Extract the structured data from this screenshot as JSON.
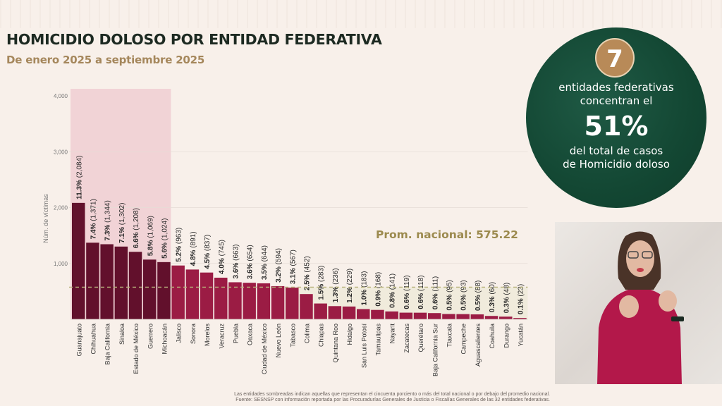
{
  "header": {
    "title": "HOMICIDIO DOLOSO POR ENTIDAD FEDERATIVA",
    "subtitle": "De enero 2025 a septiembre 2025"
  },
  "highlight": {
    "count": "7",
    "line1a": "entidades federativas",
    "line1b": "concentran el",
    "percent": "51%",
    "line2a": "del total de casos",
    "line2b": "de Homicidio doloso"
  },
  "average_label": "Prom. nacional: 575.22",
  "footnote": {
    "line1": "Las entidades sombreadas indican aquellas que representan el cincuenta porciento o más del total nacional o por debajo del promedio nacional.",
    "line2": "Fuente: SESNSP con información reportada por las Procuradurías Generales de Justicia o Fiscalías Generales de las 32 entidades federativas."
  },
  "interpreter": {
    "label": "Intérprete de lengua de señas"
  },
  "colors": {
    "top_bar": "#62102c",
    "other_bar": "#9b1c44",
    "top_region": "#f1d3d6",
    "below_avg_region": "#f0ebdc",
    "average_line": "#b7b27a"
  },
  "chart_data": {
    "type": "bar",
    "title": "HOMICIDIO DOLOSO POR ENTIDAD FEDERATIVA",
    "subtitle": "De enero 2025 a septiembre 2025",
    "xlabel": "",
    "ylabel": "Núm. de víctimas",
    "ylim": [
      0,
      4000
    ],
    "yticks": [
      1000,
      2000,
      3000,
      4000
    ],
    "ytick_labels": [
      "1,000",
      "2,000",
      "3,000",
      "4,000"
    ],
    "average": 575.22,
    "average_label": "Prom. nacional: 575.22",
    "top_group_count": 7,
    "categories": [
      "Guanajuato",
      "Chihuahua",
      "Baja California",
      "Sinaloa",
      "Estado de México",
      "Guerrero",
      "Michoacán",
      "Jalisco",
      "Sonora",
      "Morelos",
      "Veracruz",
      "Puebla",
      "Oaxaca",
      "Ciudad de México",
      "Nuevo León",
      "Tabasco",
      "Colima",
      "Chiapas",
      "Quintana Roo",
      "Hidalgo",
      "San Luis Potosí",
      "Tamaulipas",
      "Nayarit",
      "Zacatecas",
      "Querétaro",
      "Baja California Sur",
      "Tlaxcala",
      "Campeche",
      "Aguascalientes",
      "Coahuila",
      "Durango",
      "Yucatán"
    ],
    "values": [
      2084,
      1371,
      1344,
      1302,
      1208,
      1069,
      1024,
      963,
      891,
      837,
      745,
      663,
      654,
      644,
      594,
      567,
      452,
      283,
      236,
      229,
      183,
      168,
      141,
      119,
      118,
      111,
      95,
      93,
      88,
      60,
      48,
      23
    ],
    "percents": [
      "11.3%",
      "7.4%",
      "7.3%",
      "7.1%",
      "6.6%",
      "5.8%",
      "5.6%",
      "5.2%",
      "4.8%",
      "4.5%",
      "4.0%",
      "3.6%",
      "3.6%",
      "3.5%",
      "3.2%",
      "3.1%",
      "2.5%",
      "1.5%",
      "1.3%",
      "1.2%",
      "1.0%",
      "0.9%",
      "0.8%",
      "0.6%",
      "0.6%",
      "0.6%",
      "0.5%",
      "0.5%",
      "0.5%",
      "0.3%",
      "0.3%",
      "0.1%"
    ],
    "value_labels": [
      "(2,084)",
      "(1,371)",
      "(1,344)",
      "(1,302)",
      "(1,208)",
      "(1,069)",
      "(1,024)",
      "(963)",
      "(891)",
      "(837)",
      "(745)",
      "(663)",
      "(654)",
      "(644)",
      "(594)",
      "(567)",
      "(452)",
      "(283)",
      "(236)",
      "(229)",
      "(183)",
      "(168)",
      "(141)",
      "(119)",
      "(118)",
      "(111)",
      "(95)",
      "(93)",
      "(88)",
      "(60)",
      "(48)",
      "(23)"
    ],
    "grid": true,
    "legend": "none"
  }
}
